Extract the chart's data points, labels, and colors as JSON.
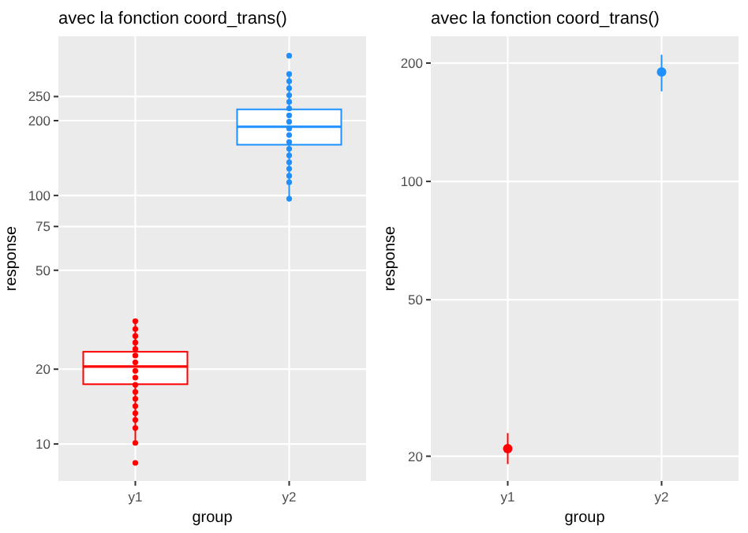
{
  "chart_data": [
    {
      "type": "box",
      "title": "avec la fonction coord_trans()",
      "xlabel": "group",
      "ylabel": "response",
      "categories": [
        "y1",
        "y2"
      ],
      "log": true,
      "ylim": [
        7.1,
        437
      ],
      "yticks": [
        10,
        20,
        50,
        75,
        100,
        200,
        250
      ],
      "grid": true,
      "marker": "circle",
      "series": [
        {
          "type": "box",
          "colors": [
            "#ff0000",
            "#1e90ff"
          ],
          "boxes": [
            {
              "low": 10.1,
              "q1": 17.4,
              "median": 20.5,
              "q3": 23.5,
              "high": 31
            },
            {
              "low": 98.6,
              "q1": 160,
              "median": 189,
              "q3": 222,
              "high": 307
            }
          ]
        },
        {
          "type": "scatter",
          "color": "#ff0000",
          "x": [
            "y1",
            "y1",
            "y1",
            "y1",
            "y1",
            "y1",
            "y1",
            "y1",
            "y1",
            "y1",
            "y1",
            "y1",
            "y1",
            "y1",
            "y1",
            "y1",
            "y1",
            "y1"
          ],
          "values": [
            31.2,
            29.0,
            27.2,
            25.6,
            24.1,
            22.7,
            21.3,
            19.7,
            18.5,
            17.3,
            16.2,
            15.2,
            14.2,
            13.3,
            12.5,
            11.6,
            10.1,
            8.4
          ]
        },
        {
          "type": "scatter",
          "color": "#1e90ff",
          "x": [
            "y2",
            "y2",
            "y2",
            "y2",
            "y2",
            "y2",
            "y2",
            "y2",
            "y2",
            "y2",
            "y2",
            "y2",
            "y2",
            "y2",
            "y2",
            "y2",
            "y2",
            "y2",
            "y2"
          ],
          "values": [
            365,
            308,
            288,
            270,
            253,
            238,
            224,
            210,
            198,
            186,
            175,
            164,
            154,
            145,
            136,
            128,
            120,
            113,
            97
          ]
        }
      ]
    },
    {
      "type": "scatter",
      "title": "avec la fonction coord_trans()",
      "xlabel": "group",
      "ylabel": "response",
      "categories": [
        "y1",
        "y2"
      ],
      "log": true,
      "ylim": [
        17.3,
        234
      ],
      "yticks": [
        20,
        50,
        100,
        200
      ],
      "grid": true,
      "marker": "circle",
      "values": [
        20.9,
        189.8
      ],
      "errors": [
        [
          19.1,
          22.9
        ],
        [
          169.5,
          210
        ]
      ],
      "colors": [
        "#ff0000",
        "#1e90ff"
      ]
    }
  ]
}
